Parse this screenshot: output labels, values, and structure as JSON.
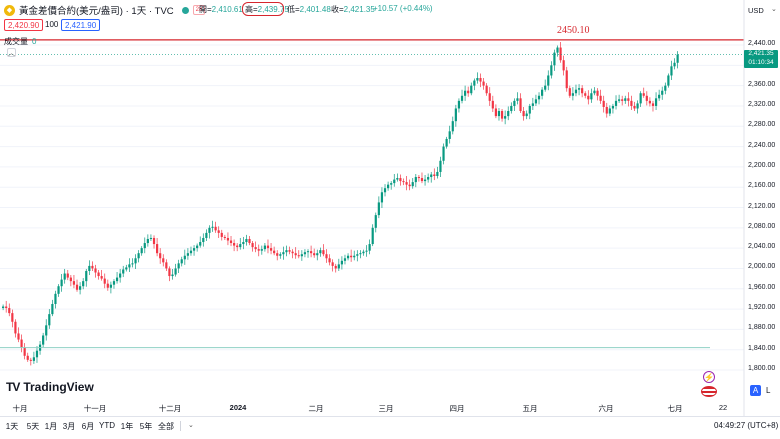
{
  "header": {
    "title": "黃金差價合約(美元/盎司) · 1天 · TVC",
    "badge": "28",
    "open_label": "開=",
    "open_value": "2,410.61",
    "high_label": "高=",
    "high_value": "2,439.75",
    "low_label": "低=",
    "low_value": "2,401.48",
    "close_label": "收=",
    "close_value": "2,421.35",
    "change": "+10.57 (+0.44%)"
  },
  "trade": {
    "sell": "2,420.90",
    "spread": "100",
    "buy": "2,421.90"
  },
  "volume": {
    "label": "成交量",
    "value": "0"
  },
  "collapse_glyph": "︿",
  "currency": "USD",
  "price_axis": {
    "ticks": [
      "2,440.00",
      "2,400.00",
      "2,360.00",
      "2,320.00",
      "2,280.00",
      "2,240.00",
      "2,200.00",
      "2,160.00",
      "2,120.00",
      "2,080.00",
      "2,040.00",
      "2,000.00",
      "1,960.00",
      "1,920.00",
      "1,880.00",
      "1,840.00",
      "1,800.00"
    ],
    "last_price": "2,421.35",
    "countdown": "01:10:34"
  },
  "annotation": {
    "text": "2450.10",
    "level": 2450.1,
    "color": "#d6262d"
  },
  "support_line_level": 1844,
  "time_axis": [
    {
      "label": "十月",
      "bold": false
    },
    {
      "label": "十一月",
      "bold": false
    },
    {
      "label": "十二月",
      "bold": false
    },
    {
      "label": "2024",
      "bold": true
    },
    {
      "label": "二月",
      "bold": false
    },
    {
      "label": "三月",
      "bold": false
    },
    {
      "label": "四月",
      "bold": false
    },
    {
      "label": "五月",
      "bold": false
    },
    {
      "label": "六月",
      "bold": false
    },
    {
      "label": "七月",
      "bold": false
    },
    {
      "label": "22",
      "bold": false
    }
  ],
  "brand": "TradingView",
  "bottom_toolbar": {
    "ranges": [
      "1天",
      "5天",
      "1月",
      "3月",
      "6月",
      "YTD",
      "1年",
      "5年",
      "全部"
    ],
    "clock": "04:49:27 (UTC+8)"
  },
  "axis_buttons": {
    "auto": "A",
    "log": "L"
  },
  "colors": {
    "up": "#089981",
    "down": "#f23645",
    "accent": "#2962ff",
    "annotation": "#d6262d"
  },
  "chart_data": {
    "type": "candlestick",
    "y_range": [
      1800,
      2460
    ],
    "series_close": [
      1925,
      1922,
      1912,
      1895,
      1872,
      1860,
      1845,
      1828,
      1820,
      1818,
      1825,
      1838,
      1850,
      1868,
      1888,
      1910,
      1930,
      1950,
      1965,
      1978,
      1990,
      1982,
      1975,
      1968,
      1958,
      1965,
      1975,
      1995,
      2005,
      2000,
      1992,
      1985,
      1980,
      1970,
      1962,
      1968,
      1975,
      1982,
      1990,
      1998,
      2002,
      2008,
      2010,
      2020,
      2030,
      2040,
      2050,
      2058,
      2060,
      2048,
      2030,
      2020,
      2012,
      2000,
      1985,
      1988,
      2000,
      2010,
      2018,
      2025,
      2030,
      2035,
      2040,
      2045,
      2052,
      2060,
      2070,
      2080,
      2082,
      2075,
      2070,
      2062,
      2060,
      2055,
      2050,
      2045,
      2042,
      2048,
      2052,
      2058,
      2050,
      2042,
      2038,
      2035,
      2038,
      2045,
      2040,
      2035,
      2030,
      2025,
      2028,
      2032,
      2036,
      2033,
      2030,
      2026,
      2024,
      2028,
      2032,
      2034,
      2030,
      2026,
      2030,
      2036,
      2028,
      2020,
      2012,
      2005,
      2000,
      2008,
      2015,
      2020,
      2025,
      2022,
      2025,
      2028,
      2030,
      2033,
      2035,
      2048,
      2080,
      2105,
      2130,
      2150,
      2158,
      2165,
      2168,
      2175,
      2178,
      2172,
      2170,
      2165,
      2162,
      2170,
      2180,
      2178,
      2172,
      2175,
      2180,
      2185,
      2182,
      2190,
      2212,
      2240,
      2255,
      2270,
      2290,
      2315,
      2330,
      2340,
      2350,
      2345,
      2360,
      2370,
      2375,
      2368,
      2360,
      2345,
      2330,
      2315,
      2300,
      2310,
      2295,
      2300,
      2310,
      2320,
      2330,
      2335,
      2310,
      2300,
      2305,
      2320,
      2325,
      2333,
      2340,
      2352,
      2360,
      2380,
      2400,
      2425,
      2435,
      2410,
      2390,
      2355,
      2340,
      2345,
      2352,
      2355,
      2345,
      2340,
      2333,
      2345,
      2350,
      2340,
      2330,
      2318,
      2305,
      2315,
      2320,
      2330,
      2333,
      2330,
      2335,
      2330,
      2320,
      2315,
      2325,
      2345,
      2340,
      2330,
      2325,
      2320,
      2335,
      2342,
      2350,
      2360,
      2380,
      2398,
      2405,
      2421
    ]
  }
}
